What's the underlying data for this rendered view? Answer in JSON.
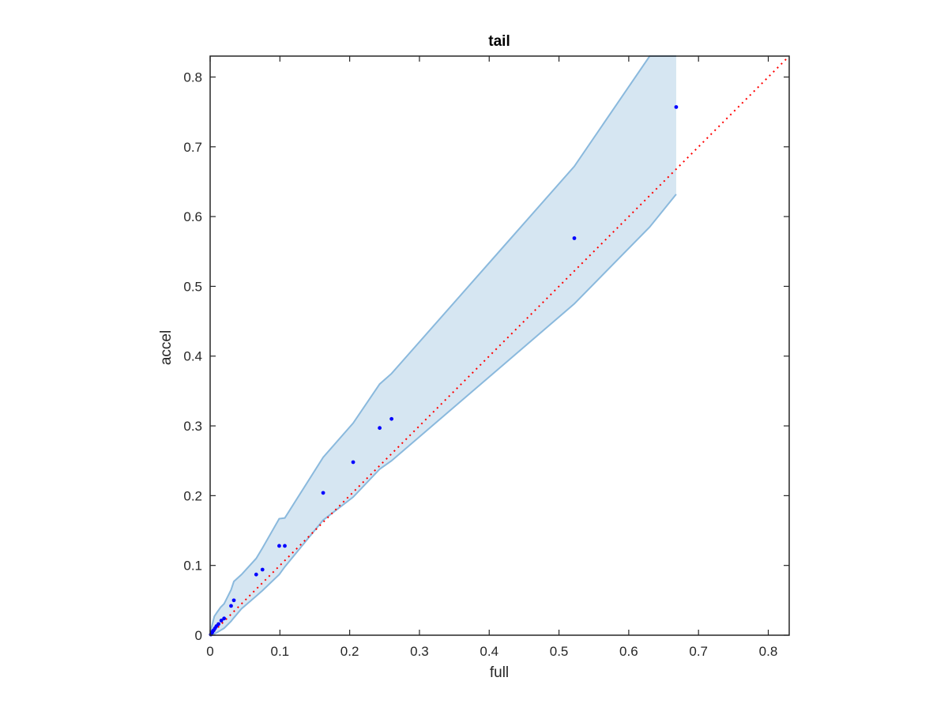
{
  "chart_data": {
    "type": "scatter",
    "title": "tail",
    "xlabel": "full",
    "ylabel": "accel",
    "xlim": [
      0,
      0.83
    ],
    "ylim": [
      0,
      0.83
    ],
    "grid": false,
    "box": true,
    "x_ticks": [
      0,
      0.1,
      0.2,
      0.3,
      0.4,
      0.5,
      0.6,
      0.7,
      0.8
    ],
    "x_tick_labels": [
      "0",
      "0.1",
      "0.2",
      "0.3",
      "0.4",
      "0.5",
      "0.6",
      "0.7",
      "0.8"
    ],
    "y_ticks": [
      0,
      0.1,
      0.2,
      0.3,
      0.4,
      0.5,
      0.6,
      0.7,
      0.8
    ],
    "y_tick_labels": [
      "0",
      "0.1",
      "0.2",
      "0.3",
      "0.4",
      "0.5",
      "0.6",
      "0.7",
      "0.8"
    ],
    "points": {
      "x": [
        0.001,
        0.002,
        0.003,
        0.004,
        0.005,
        0.007,
        0.009,
        0.012,
        0.016,
        0.02,
        0.03,
        0.034,
        0.066,
        0.075,
        0.099,
        0.107,
        0.162,
        0.205,
        0.243,
        0.26,
        0.522,
        0.668
      ],
      "y": [
        0.001,
        0.003,
        0.004,
        0.006,
        0.007,
        0.01,
        0.013,
        0.016,
        0.021,
        0.024,
        0.042,
        0.05,
        0.087,
        0.094,
        0.128,
        0.128,
        0.204,
        0.248,
        0.297,
        0.31,
        0.569,
        0.757
      ],
      "color": "#0000ff"
    },
    "band": {
      "x": [
        0,
        0.003,
        0.006,
        0.01,
        0.015,
        0.02,
        0.025,
        0.03,
        0.034,
        0.045,
        0.066,
        0.075,
        0.099,
        0.107,
        0.162,
        0.205,
        0.243,
        0.26,
        0.522,
        0.63,
        0.668
      ],
      "upper": [
        0.005,
        0.015,
        0.027,
        0.033,
        0.04,
        0.045,
        0.055,
        0.065,
        0.077,
        0.087,
        0.11,
        0.125,
        0.167,
        0.168,
        0.255,
        0.304,
        0.36,
        0.375,
        0.672,
        0.83,
        0.83
      ],
      "lower": [
        0,
        0.001,
        0.002,
        0.004,
        0.007,
        0.01,
        0.015,
        0.02,
        0.025,
        0.038,
        0.056,
        0.064,
        0.087,
        0.098,
        0.165,
        0.198,
        0.238,
        0.25,
        0.475,
        0.585,
        0.632
      ],
      "fill_color": "#d6e6f2",
      "line_color": "#8ab9dd"
    },
    "reference_line": {
      "x": [
        0,
        0.83
      ],
      "y": [
        0,
        0.83
      ],
      "style": "dotted",
      "color": "#ff0000"
    }
  }
}
